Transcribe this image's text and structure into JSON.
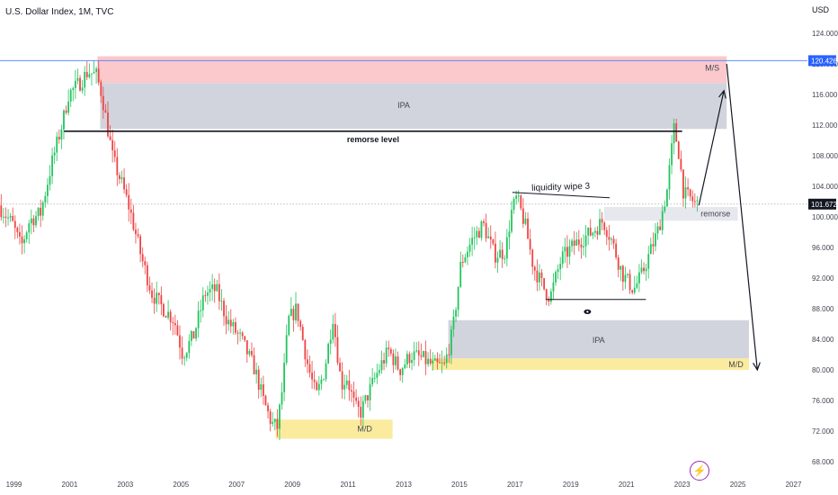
{
  "header": {
    "symbol_title": "U.S. Dollar Index, 1M, TVC",
    "currency": "USD"
  },
  "badge_icon": "lightning-icon",
  "colors": {
    "up": "#22c55e",
    "down": "#ef4444",
    "supply_zone": "#fbc8cb",
    "ipa_zone": "#d1d4dc",
    "demand_zone": "#fbeb9e",
    "price_label": "#2962ff",
    "price_line": "#5b8ff9"
  },
  "chart_data": {
    "type": "candlestick",
    "title": "U.S. Dollar Index, 1M, TVC",
    "xlabel": "",
    "ylabel": "",
    "x_range": [
      1998.5,
      2027.5
    ],
    "ylim": [
      66,
      126
    ],
    "y_ticks": [
      68,
      72,
      76,
      80,
      84,
      88,
      92,
      96,
      100,
      104,
      108,
      112,
      116,
      120,
      124
    ],
    "y_tick_labels": [
      "68.000",
      "72.000",
      "76.000",
      "80.000",
      "84.000",
      "88.000",
      "92.000",
      "96.000",
      "100.000",
      "104.000",
      "108.000",
      "112.000",
      "116.000",
      "120.000",
      "124.000"
    ],
    "x_ticks": [
      1999,
      2001,
      2003,
      2005,
      2007,
      2009,
      2011,
      2013,
      2015,
      2017,
      2019,
      2021,
      2023,
      2025,
      2027
    ],
    "x_tick_labels": [
      "1999",
      "2001",
      "2003",
      "2005",
      "2007",
      "2009",
      "2011",
      "2013",
      "2015",
      "2017",
      "2019",
      "2021",
      "2023",
      "2025",
      "2027"
    ],
    "grid": false,
    "price_path": [
      [
        1998.5,
        101.5
      ],
      [
        1999.0,
        99.0
      ],
      [
        1999.3,
        96.0
      ],
      [
        1999.6,
        99.5
      ],
      [
        2000.0,
        100.5
      ],
      [
        2000.4,
        107.0
      ],
      [
        2000.8,
        112.5
      ],
      [
        2001.0,
        116.0
      ],
      [
        2001.4,
        117.5
      ],
      [
        2001.7,
        119.0
      ],
      [
        2002.0,
        118.5
      ],
      [
        2002.2,
        116.0
      ],
      [
        2002.6,
        107.5
      ],
      [
        2002.9,
        104.5
      ],
      [
        2003.2,
        101.0
      ],
      [
        2003.6,
        95.0
      ],
      [
        2004.0,
        90.0
      ],
      [
        2004.3,
        88.5
      ],
      [
        2004.8,
        86.5
      ],
      [
        2005.1,
        82.0
      ],
      [
        2005.5,
        84.5
      ],
      [
        2005.9,
        90.0
      ],
      [
        2006.3,
        90.5
      ],
      [
        2006.7,
        86.5
      ],
      [
        2007.2,
        84.0
      ],
      [
        2007.7,
        80.0
      ],
      [
        2008.0,
        76.0
      ],
      [
        2008.3,
        73.0
      ],
      [
        2008.5,
        72.5
      ],
      [
        2008.7,
        78.0
      ],
      [
        2008.9,
        86.5
      ],
      [
        2009.2,
        88.0
      ],
      [
        2009.6,
        80.5
      ],
      [
        2009.9,
        76.5
      ],
      [
        2010.2,
        80.0
      ],
      [
        2010.5,
        87.0
      ],
      [
        2010.8,
        78.0
      ],
      [
        2011.0,
        79.0
      ],
      [
        2011.3,
        75.0
      ],
      [
        2011.5,
        74.5
      ],
      [
        2011.9,
        78.0
      ],
      [
        2012.2,
        80.5
      ],
      [
        2012.5,
        82.5
      ],
      [
        2012.9,
        80.0
      ],
      [
        2013.3,
        82.0
      ],
      [
        2013.7,
        81.5
      ],
      [
        2014.1,
        80.5
      ],
      [
        2014.5,
        80.5
      ],
      [
        2014.8,
        85.0
      ],
      [
        2015.1,
        94.0
      ],
      [
        2015.5,
        97.0
      ],
      [
        2015.9,
        99.0
      ],
      [
        2016.3,
        95.0
      ],
      [
        2016.7,
        95.5
      ],
      [
        2016.9,
        100.5
      ],
      [
        2017.1,
        102.5
      ],
      [
        2017.4,
        99.0
      ],
      [
        2017.7,
        93.5
      ],
      [
        2018.1,
        90.5
      ],
      [
        2018.3,
        89.5
      ],
      [
        2018.7,
        94.5
      ],
      [
        2019.2,
        96.5
      ],
      [
        2019.8,
        98.0
      ],
      [
        2020.2,
        99.5
      ],
      [
        2020.5,
        97.0
      ],
      [
        2020.9,
        92.5
      ],
      [
        2021.3,
        90.5
      ],
      [
        2021.6,
        92.5
      ],
      [
        2021.9,
        95.5
      ],
      [
        2022.2,
        98.5
      ],
      [
        2022.5,
        103.5
      ],
      [
        2022.75,
        111.5
      ],
      [
        2022.9,
        109.0
      ],
      [
        2023.1,
        103.0
      ],
      [
        2023.3,
        102.5
      ],
      [
        2023.55,
        101.67
      ]
    ],
    "last_price": 101.672,
    "last_price_label": "101.672",
    "marked_level": 120.426,
    "marked_level_label": "120.426",
    "zones": [
      {
        "id": "supply",
        "label": "M/S",
        "x": [
          2002.0,
          2024.6
        ],
        "y": [
          117.5,
          121.0
        ],
        "fill": "#fbc8cb"
      },
      {
        "id": "ipa-top",
        "label": "IPA",
        "x": [
          2002.1,
          2024.6
        ],
        "y": [
          111.5,
          117.5
        ],
        "fill": "#d1d4dc"
      },
      {
        "id": "remorse",
        "label": "remorse",
        "x": [
          2020.2,
          2025.0
        ],
        "y": [
          99.5,
          101.3
        ],
        "fill": "#e6e8ee"
      },
      {
        "id": "ipa-bottom",
        "label": "IPA",
        "x": [
          2014.6,
          2025.4
        ],
        "y": [
          81.5,
          86.5
        ],
        "fill": "#d1d4dc"
      },
      {
        "id": "demand-low",
        "label": "M/D",
        "x": [
          2008.4,
          2012.6
        ],
        "y": [
          71.0,
          73.5
        ],
        "fill": "#fbeb9e"
      },
      {
        "id": "demand-right",
        "label": "M/D",
        "x": [
          2014.0,
          2025.4
        ],
        "y": [
          80.0,
          81.5
        ],
        "fill": "#fbeb9e"
      }
    ],
    "annotations": [
      {
        "id": "remorse-level",
        "label": "remorse level",
        "type": "hline",
        "x": [
          2000.8,
          2023.0
        ],
        "y": 111.2
      },
      {
        "id": "liquidity-wipe",
        "label": "liquidity wipe 3",
        "type": "line",
        "x": [
          2016.9,
          2020.4
        ],
        "y": [
          103.2,
          102.5
        ]
      },
      {
        "id": "low-line",
        "label": "",
        "type": "line",
        "x": [
          2018.1,
          2021.7
        ],
        "y": [
          89.2,
          89.2
        ]
      },
      {
        "id": "arrow-up",
        "label": "",
        "type": "arrow",
        "x": [
          2023.6,
          2024.5
        ],
        "y": [
          101.5,
          116.5
        ]
      },
      {
        "id": "arrow-down",
        "label": "",
        "type": "arrow",
        "x": [
          2024.6,
          2025.7
        ],
        "y": [
          120.0,
          80.0
        ]
      },
      {
        "id": "eye",
        "label": "",
        "type": "eye-icon",
        "x": 2019.6,
        "y": 87.6
      }
    ]
  }
}
